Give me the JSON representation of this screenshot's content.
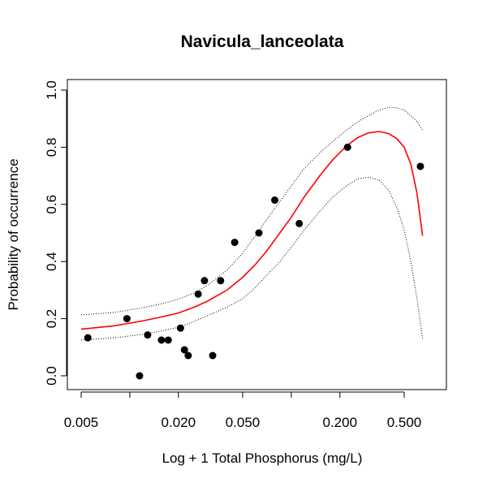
{
  "chart_data": {
    "type": "scatter",
    "title": "Navicula_lanceolata",
    "xlabel": "Log + 1 Total Phosphorus (mg/L)",
    "ylabel": "Probability of occurrence",
    "x_scale": "log",
    "xlim": [
      0.005,
      0.75
    ],
    "ylim": [
      0,
      1
    ],
    "x_ticks": [
      {
        "value": 0.005,
        "label": "0.005"
      },
      {
        "value": 0.01,
        "label": ""
      },
      {
        "value": 0.02,
        "label": "0.020"
      },
      {
        "value": 0.05,
        "label": "0.050"
      },
      {
        "value": 0.1,
        "label": ""
      },
      {
        "value": 0.2,
        "label": "0.200"
      },
      {
        "value": 0.5,
        "label": "0.500"
      }
    ],
    "y_ticks": [
      {
        "value": 0.0,
        "label": "0.0"
      },
      {
        "value": 0.2,
        "label": "0.2"
      },
      {
        "value": 0.4,
        "label": "0.4"
      },
      {
        "value": 0.6,
        "label": "0.6"
      },
      {
        "value": 0.8,
        "label": "0.8"
      },
      {
        "value": 1.0,
        "label": "1.0"
      }
    ],
    "grid": false,
    "colors": {
      "points": "#000000",
      "fit": "#ff0000",
      "band": "#000000"
    },
    "points": [
      {
        "x": 0.0055,
        "y": 0.133
      },
      {
        "x": 0.0096,
        "y": 0.2
      },
      {
        "x": 0.0115,
        "y": 0.0
      },
      {
        "x": 0.0129,
        "y": 0.143
      },
      {
        "x": 0.0157,
        "y": 0.125
      },
      {
        "x": 0.0173,
        "y": 0.125
      },
      {
        "x": 0.0206,
        "y": 0.167
      },
      {
        "x": 0.0218,
        "y": 0.091
      },
      {
        "x": 0.023,
        "y": 0.071
      },
      {
        "x": 0.0265,
        "y": 0.286
      },
      {
        "x": 0.029,
        "y": 0.333
      },
      {
        "x": 0.0326,
        "y": 0.071
      },
      {
        "x": 0.0365,
        "y": 0.333
      },
      {
        "x": 0.0446,
        "y": 0.467
      },
      {
        "x": 0.063,
        "y": 0.5
      },
      {
        "x": 0.079,
        "y": 0.615
      },
      {
        "x": 0.112,
        "y": 0.533
      },
      {
        "x": 0.223,
        "y": 0.8
      },
      {
        "x": 0.63,
        "y": 0.733
      }
    ],
    "series": [
      {
        "style": "solid",
        "color": "#ff0000",
        "x": [
          0.005,
          0.008,
          0.012,
          0.016,
          0.02,
          0.025,
          0.03,
          0.04,
          0.05,
          0.06,
          0.07,
          0.085,
          0.1,
          0.12,
          0.15,
          0.18,
          0.22,
          0.26,
          0.3,
          0.35,
          0.4,
          0.45,
          0.5,
          0.55,
          0.6,
          0.65
        ],
        "y": [
          0.163,
          0.175,
          0.192,
          0.207,
          0.22,
          0.24,
          0.26,
          0.3,
          0.345,
          0.39,
          0.435,
          0.5,
          0.555,
          0.625,
          0.7,
          0.755,
          0.805,
          0.835,
          0.85,
          0.855,
          0.848,
          0.83,
          0.8,
          0.74,
          0.64,
          0.49
        ]
      },
      {
        "style": "dotted",
        "color": "#000000",
        "x": [
          0.005,
          0.008,
          0.012,
          0.016,
          0.02,
          0.025,
          0.03,
          0.04,
          0.05,
          0.06,
          0.07,
          0.085,
          0.1,
          0.12,
          0.15,
          0.18,
          0.22,
          0.26,
          0.3,
          0.35,
          0.4,
          0.45,
          0.5,
          0.55,
          0.6,
          0.65
        ],
        "y": [
          0.213,
          0.222,
          0.238,
          0.253,
          0.268,
          0.29,
          0.315,
          0.37,
          0.43,
          0.49,
          0.545,
          0.61,
          0.665,
          0.725,
          0.78,
          0.82,
          0.86,
          0.89,
          0.91,
          0.93,
          0.94,
          0.938,
          0.93,
          0.91,
          0.89,
          0.86
        ]
      },
      {
        "style": "dotted",
        "color": "#000000",
        "x": [
          0.005,
          0.008,
          0.012,
          0.016,
          0.02,
          0.025,
          0.03,
          0.04,
          0.05,
          0.06,
          0.07,
          0.085,
          0.1,
          0.12,
          0.15,
          0.18,
          0.22,
          0.26,
          0.3,
          0.35,
          0.4,
          0.45,
          0.5,
          0.55,
          0.6,
          0.65
        ],
        "y": [
          0.125,
          0.133,
          0.145,
          0.158,
          0.17,
          0.19,
          0.21,
          0.24,
          0.27,
          0.31,
          0.35,
          0.4,
          0.45,
          0.51,
          0.575,
          0.625,
          0.665,
          0.69,
          0.695,
          0.685,
          0.65,
          0.59,
          0.51,
          0.4,
          0.27,
          0.13
        ]
      }
    ]
  }
}
